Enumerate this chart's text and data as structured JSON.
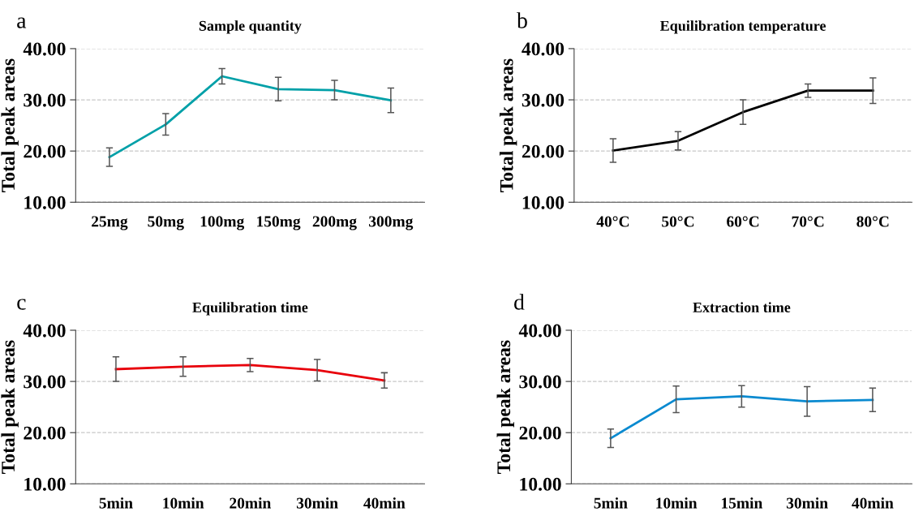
{
  "chart_data": [
    {
      "type": "line",
      "title": "Sample quantity",
      "ylabel": "Total peak areas",
      "annotations": [
        "a"
      ],
      "categories": [
        "25mg",
        "50mg",
        "100mg",
        "150mg",
        "200mg",
        "300mg"
      ],
      "series": [
        {
          "color": "#00a0a8",
          "values": [
            18.8,
            25.2,
            34.6,
            32.1,
            31.9,
            29.9
          ],
          "errors": [
            1.8,
            2.1,
            1.5,
            2.3,
            1.9,
            2.4
          ]
        }
      ],
      "ylim": [
        10,
        40
      ],
      "yticks": [
        {
          "value": 10,
          "label": "10.00"
        },
        {
          "value": 20,
          "label": "20.00"
        },
        {
          "value": 30,
          "label": "30.00"
        },
        {
          "value": 40,
          "label": "40.00"
        }
      ],
      "grid": "y",
      "marker": "none",
      "line_style": "solid"
    },
    {
      "type": "line",
      "title": "Equilibration temperature",
      "ylabel": "Total peak areas",
      "annotations": [
        "b"
      ],
      "categories": [
        "40°C",
        "50°C",
        "60°C",
        "70°C",
        "80°C"
      ],
      "series": [
        {
          "color": "#000000",
          "values": [
            20.1,
            22.0,
            27.6,
            31.8,
            31.8
          ],
          "errors": [
            2.3,
            1.8,
            2.4,
            1.3,
            2.5
          ]
        }
      ],
      "ylim": [
        10,
        40
      ],
      "yticks": [
        {
          "value": 10,
          "label": "10.00"
        },
        {
          "value": 20,
          "label": "20.00"
        },
        {
          "value": 30,
          "label": "30.00"
        },
        {
          "value": 40,
          "label": "40.00"
        }
      ],
      "grid": "y",
      "marker": "none",
      "line_style": "solid"
    },
    {
      "type": "line",
      "title": "Equilibration time",
      "ylabel": "Total peak areas",
      "annotations": [
        "c"
      ],
      "categories": [
        "5min",
        "10min",
        "20min",
        "30min",
        "40min"
      ],
      "series": [
        {
          "color": "#e8000b",
          "values": [
            32.4,
            32.9,
            33.2,
            32.2,
            30.2
          ],
          "errors": [
            2.4,
            1.9,
            1.3,
            2.1,
            1.5
          ]
        }
      ],
      "ylim": [
        10,
        40
      ],
      "yticks": [
        {
          "value": 10,
          "label": "10.00"
        },
        {
          "value": 20,
          "label": "20.00"
        },
        {
          "value": 30,
          "label": "30.00"
        },
        {
          "value": 40,
          "label": "40.00"
        }
      ],
      "grid": "y",
      "marker": "none",
      "line_style": "solid"
    },
    {
      "type": "line",
      "title": "Extraction time",
      "ylabel": "Total peak areas",
      "annotations": [
        "d"
      ],
      "categories": [
        "5min",
        "10min",
        "15min",
        "30min",
        "40min"
      ],
      "series": [
        {
          "color": "#0a8ad0",
          "values": [
            18.9,
            26.5,
            27.1,
            26.1,
            26.4
          ],
          "errors": [
            1.8,
            2.6,
            2.1,
            2.9,
            2.3
          ]
        }
      ],
      "ylim": [
        10,
        40
      ],
      "yticks": [
        {
          "value": 10,
          "label": "10.00"
        },
        {
          "value": 20,
          "label": "20.00"
        },
        {
          "value": 30,
          "label": "30.00"
        },
        {
          "value": 40,
          "label": "40.00"
        }
      ],
      "grid": "y",
      "marker": "none",
      "line_style": "solid"
    }
  ]
}
